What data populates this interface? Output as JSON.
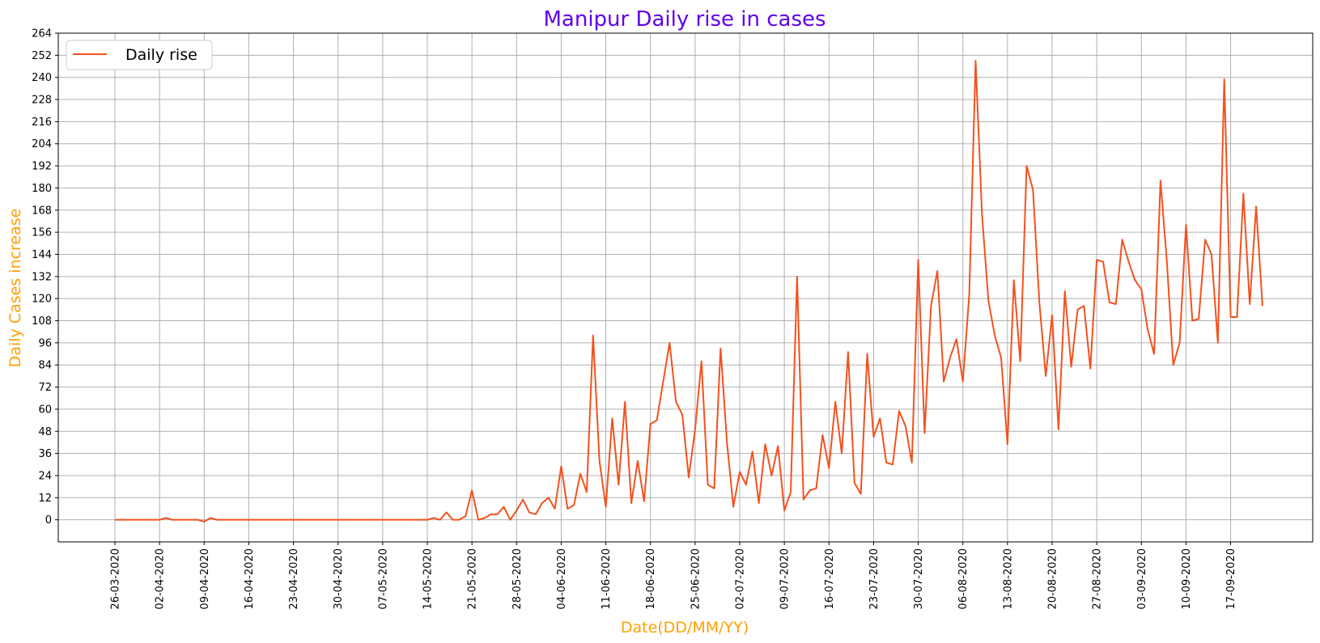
{
  "chart_data": {
    "type": "line",
    "title": "Manipur Daily rise in cases",
    "xlabel": "Date(DD/MM/YY)",
    "ylabel": "Daily Cases increase",
    "ylim": [
      -12,
      264
    ],
    "yticks": [
      0,
      12,
      24,
      36,
      48,
      60,
      72,
      84,
      96,
      108,
      120,
      132,
      144,
      156,
      168,
      180,
      192,
      204,
      216,
      228,
      240,
      252,
      264
    ],
    "xticks": [
      "26-03-2020",
      "02-04-2020",
      "09-04-2020",
      "16-04-2020",
      "23-04-2020",
      "30-04-2020",
      "07-05-2020",
      "14-05-2020",
      "21-05-2020",
      "28-05-2020",
      "04-06-2020",
      "11-06-2020",
      "18-06-2020",
      "25-06-2020",
      "02-07-2020",
      "09-07-2020",
      "16-07-2020",
      "23-07-2020",
      "30-07-2020",
      "06-08-2020",
      "13-08-2020",
      "20-08-2020",
      "27-08-2020",
      "03-09-2020",
      "10-09-2020",
      "17-09-2020"
    ],
    "grid": true,
    "legend": {
      "position": "top-left"
    },
    "colors": {
      "line": "#f4511e",
      "title": "#6200ea",
      "axis_label": "#ffa000"
    },
    "series": [
      {
        "name": "Daily rise",
        "values": [
          0,
          0,
          0,
          0,
          0,
          0,
          0,
          0,
          1,
          0,
          0,
          0,
          0,
          0,
          -1,
          1,
          0,
          0,
          0,
          0,
          0,
          0,
          0,
          0,
          0,
          0,
          0,
          0,
          0,
          0,
          0,
          0,
          0,
          0,
          0,
          0,
          0,
          0,
          0,
          0,
          0,
          0,
          0,
          0,
          0,
          0,
          0,
          0,
          0,
          0,
          1,
          0,
          4,
          0,
          0,
          2,
          16,
          0,
          1,
          3,
          3,
          7,
          0,
          5,
          11,
          4,
          3,
          9,
          12,
          6,
          29,
          6,
          8,
          25,
          15,
          100,
          32,
          7,
          55,
          19,
          64,
          9,
          32,
          10,
          52,
          54,
          75,
          96,
          64,
          57,
          23,
          49,
          86,
          19,
          17,
          93,
          42,
          7,
          26,
          19,
          37,
          9,
          41,
          24,
          40,
          5,
          15,
          132,
          11,
          16,
          17,
          46,
          28,
          64,
          36,
          91,
          20,
          14,
          90,
          45,
          55,
          31,
          30,
          59,
          51,
          31,
          141,
          47,
          116,
          135,
          75,
          88,
          98,
          75,
          122,
          249,
          166,
          119,
          100,
          88,
          41,
          130,
          86,
          192,
          179,
          118,
          78,
          111,
          49,
          124,
          83,
          114,
          116,
          82,
          141,
          140,
          118,
          117,
          152,
          140,
          130,
          125,
          103,
          90,
          184,
          140,
          84,
          96,
          160,
          108,
          109,
          152,
          144,
          96,
          239,
          110,
          110,
          177,
          117,
          170,
          116
        ]
      }
    ]
  }
}
